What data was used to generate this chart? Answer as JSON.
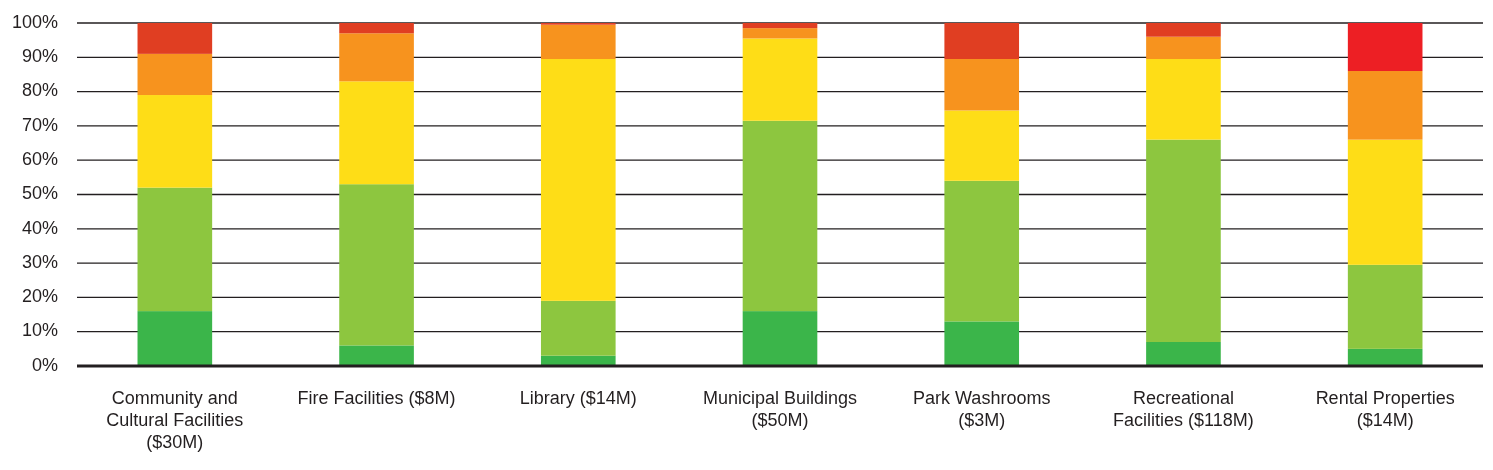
{
  "chart_data": {
    "type": "bar",
    "stacked": true,
    "categories": [
      "Community and Cultural Facilities ($30M)",
      "Fire Facilities ($8M)",
      "Library ($14M)",
      "Municipal Buildings ($50M)",
      "Park Washrooms ($3M)",
      "Recreational Facilities ($118M)",
      "Rental Properties ($14M)"
    ],
    "series": [
      {
        "color": "#3bb54a",
        "values": [
          16,
          6,
          3,
          16,
          13,
          7,
          5
        ]
      },
      {
        "color": "#8dc63f",
        "values": [
          36,
          47,
          16,
          55.5,
          41,
          59,
          24.5
        ]
      },
      {
        "color": "#fedd17",
        "values": [
          27,
          30,
          70.5,
          24,
          20.5,
          23.5,
          36.5
        ]
      },
      {
        "color": "#f7931e",
        "values": [
          12,
          14,
          10,
          3,
          15,
          6.5,
          20
        ]
      },
      {
        "colors": [
          "#e03e22",
          "#e03e22",
          "#e03e22",
          "#e03e22",
          "#e03e22",
          "#e03e22",
          "#ed1f24"
        ],
        "values": [
          9,
          3,
          0.5,
          1.5,
          10.5,
          4,
          14
        ]
      }
    ],
    "ylim": [
      0,
      100
    ],
    "yticks": [
      {
        "value": 0,
        "label": "0%"
      },
      {
        "value": 10,
        "label": "10%"
      },
      {
        "value": 20,
        "label": "20%"
      },
      {
        "value": 30,
        "label": "30%"
      },
      {
        "value": 40,
        "label": "40%"
      },
      {
        "value": 50,
        "label": "50%"
      },
      {
        "value": 60,
        "label": "60%"
      },
      {
        "value": 70,
        "label": "70%"
      },
      {
        "value": 80,
        "label": "80%"
      },
      {
        "value": 90,
        "label": "90%"
      },
      {
        "value": 100,
        "label": "100%"
      }
    ],
    "grid": "y"
  }
}
